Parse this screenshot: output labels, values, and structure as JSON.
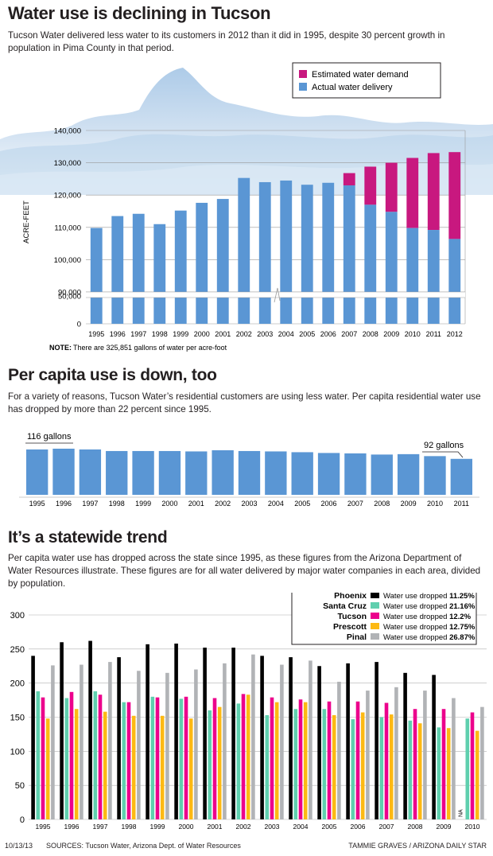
{
  "header": {
    "title": "Water use is declining in Tucson",
    "dek": "Tucson Water delivered less water to its customers in 2012 than it did in 1995, despite 30 percent growth in population in Pima County in that period."
  },
  "section2": {
    "title": "Per capita use is down, too",
    "dek": "For a variety of reasons, Tucson Water’s residential customers are using less water. Per capita residential water use has dropped by more than 22 percent since 1995."
  },
  "section3": {
    "title": "It’s a statewide trend",
    "dek": "Per capita water use has dropped across the state since 1995, as these figures from the Arizona Department of Water Resources illustrate. These figures are for all water delivered by major water companies in each area, divided by population."
  },
  "footer": {
    "date": "10/13/13",
    "sources": "SOURCES: Tucson Water, Arizona Dept. of Water Resources",
    "credit": "TAMMIE GRAVES / ARIZONA DAILY STAR"
  },
  "colors": {
    "demand": "#c8187f",
    "delivery": "#5a96d4",
    "phoenix": "#000000",
    "santa_cruz": "#5fcfae",
    "tucson": "#ec008c",
    "prescott": "#fdb913",
    "pinal": "#b1b3b6"
  },
  "chart_data": [
    {
      "type": "bar",
      "ylabel": "ACRE-FEET",
      "ylim": [
        0,
        140000
      ],
      "yticks": [
        "0",
        "50,000",
        "90,000",
        "100,000",
        "110,000",
        "120,000",
        "130,000",
        "140,000"
      ],
      "axis_break": "between 50,000 and 90,000",
      "categories": [
        "1995",
        "1996",
        "1997",
        "1998",
        "1999",
        "2000",
        "2001",
        "2002",
        "2003",
        "2004",
        "2005",
        "2006",
        "2007",
        "2008",
        "2009",
        "2010",
        "2011",
        "2012"
      ],
      "series": [
        {
          "name": "Actual water delivery",
          "values": [
            109800,
            113500,
            114200,
            111000,
            115200,
            117600,
            118800,
            125300,
            124000,
            124500,
            123200,
            123800,
            123000,
            117000,
            114800,
            109800,
            109200,
            106400
          ]
        },
        {
          "name": "Estimated water demand",
          "values": [
            109800,
            113500,
            114200,
            111000,
            115200,
            117600,
            118800,
            125300,
            124000,
            124500,
            123200,
            123800,
            126800,
            128800,
            130000,
            131500,
            133000,
            133300
          ]
        }
      ],
      "legend": "top-right",
      "note_label": "NOTE:",
      "note": "There are 325,851 gallons of water per acre-foot"
    },
    {
      "type": "bar",
      "categories": [
        "1995",
        "1996",
        "1997",
        "1998",
        "1999",
        "2000",
        "2001",
        "2002",
        "2003",
        "2004",
        "2005",
        "2006",
        "2007",
        "2008",
        "2009",
        "2010",
        "2011"
      ],
      "values": [
        116,
        118,
        116,
        112,
        112,
        112,
        111,
        114,
        112,
        111,
        109,
        107,
        106,
        103,
        104,
        99,
        92
      ],
      "annotations": [
        {
          "category": "1995",
          "label": "116 gallons"
        },
        {
          "category": "2011",
          "label": "92 gallons"
        }
      ]
    },
    {
      "type": "bar",
      "ylim": [
        0,
        300
      ],
      "yticks": [
        "0",
        "50",
        "100",
        "150",
        "200",
        "250",
        "300"
      ],
      "categories": [
        "1995",
        "1996",
        "1997",
        "1998",
        "1999",
        "2000",
        "2001",
        "2002",
        "2003",
        "2004",
        "2005",
        "2006",
        "2007",
        "2008",
        "2009",
        "2010"
      ],
      "series": [
        {
          "name": "Phoenix",
          "legend_text": "Water use dropped ",
          "pct": "11.25%",
          "values": [
            240,
            260,
            262,
            238,
            257,
            258,
            252,
            252,
            240,
            238,
            225,
            229,
            231,
            215,
            212,
            null
          ]
        },
        {
          "name": "Santa Cruz",
          "legend_text": "Water use dropped ",
          "pct": "21.16%",
          "values": [
            188,
            178,
            188,
            172,
            180,
            177,
            160,
            170,
            153,
            162,
            162,
            147,
            150,
            145,
            135,
            148
          ]
        },
        {
          "name": "Tucson",
          "legend_text": "Water use dropped ",
          "pct": "12.2%",
          "values": [
            179,
            187,
            183,
            172,
            179,
            180,
            178,
            184,
            179,
            176,
            173,
            173,
            171,
            162,
            162,
            157
          ]
        },
        {
          "name": "Prescott",
          "legend_text": "Water use dropped ",
          "pct": "12.75%",
          "values": [
            148,
            162,
            158,
            152,
            152,
            148,
            165,
            183,
            172,
            172,
            153,
            157,
            154,
            141,
            134,
            130
          ]
        },
        {
          "name": "Pinal",
          "legend_text": "Water use dropped ",
          "pct": "26.87%",
          "values": [
            226,
            227,
            231,
            218,
            215,
            220,
            229,
            242,
            227,
            233,
            202,
            189,
            194,
            189,
            178,
            165
          ]
        }
      ],
      "na_label": "NA",
      "legend": "top-right"
    }
  ]
}
